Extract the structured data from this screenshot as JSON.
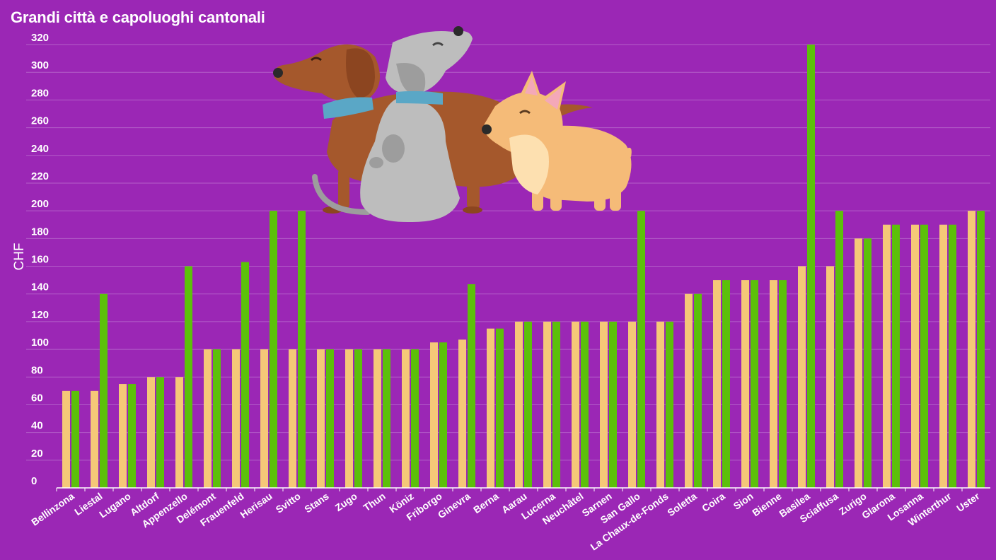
{
  "chart_data": {
    "type": "bar",
    "subtitle": "Grandi città e capoluoghi cantonali",
    "ylabel": "CHF",
    "xlabel": "",
    "ylim": [
      0,
      320
    ],
    "yticks": [
      0,
      20,
      40,
      60,
      80,
      100,
      120,
      140,
      160,
      180,
      200,
      220,
      240,
      260,
      280,
      300,
      320
    ],
    "grid": true,
    "categories": [
      "Bellinzona",
      "Liestal",
      "Lugano",
      "Altdorf",
      "Appenzello",
      "Delémont",
      "Frauenfeld",
      "Herisau",
      "Svitto",
      "Stans",
      "Zugo",
      "Thun",
      "Köniz",
      "Friborgo",
      "Ginevra",
      "Berna",
      "Aarau",
      "Lucerna",
      "Neuchâtel",
      "Sarnen",
      "San Gallo",
      "La Chaux-de-Fonds",
      "Soletta",
      "Coira",
      "Sion",
      "Bienne",
      "Basilea",
      "Sciaffusa",
      "Zurigo",
      "Glarona",
      "Losanna",
      "Winterthur",
      "Uster"
    ],
    "series": [
      {
        "color": "#f5c878",
        "values": [
          70,
          70,
          75,
          80,
          80,
          100,
          100,
          100,
          100,
          100,
          100,
          100,
          100,
          105,
          107,
          115,
          120,
          120,
          120,
          120,
          120,
          120,
          140,
          150,
          150,
          150,
          160,
          160,
          180,
          190,
          190,
          190,
          200
        ]
      },
      {
        "color": "#5cc00a",
        "values": [
          70,
          140,
          75,
          80,
          160,
          100,
          163,
          200,
          200,
          100,
          100,
          100,
          100,
          105,
          147,
          115,
          120,
          120,
          120,
          120,
          200,
          120,
          140,
          150,
          150,
          150,
          320,
          200,
          180,
          190,
          190,
          190,
          200
        ]
      }
    ]
  },
  "colors": {
    "background": "#9b27b5",
    "grid": "#b45fc9",
    "axis": "#ffffff"
  },
  "illustration": {
    "icon": "three-dogs-illustration"
  }
}
